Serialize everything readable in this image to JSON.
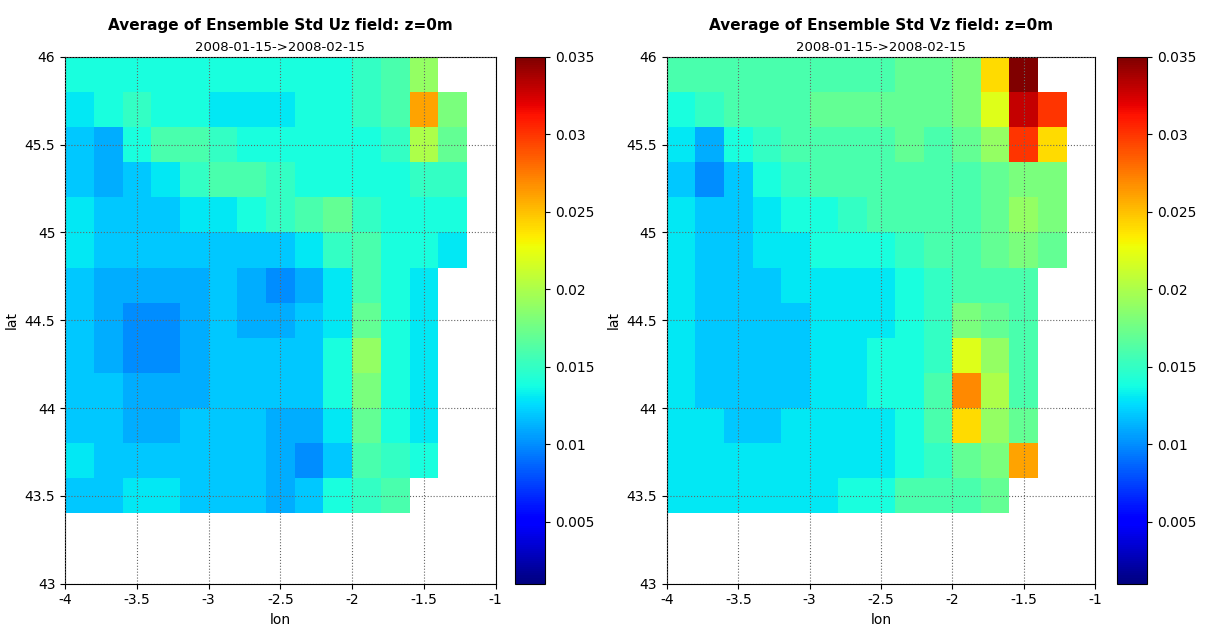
{
  "chart_data": [
    {
      "type": "heatmap",
      "title": "Average of Ensemble Std Uz field: z=0m",
      "subtitle": "2008-01-15->2008-02-15",
      "x_label": "lon",
      "y_label": "lat",
      "xlim": [
        -4,
        -1
      ],
      "ylim": [
        43,
        46
      ],
      "xticks": [
        -4,
        -3.5,
        -3,
        -2.5,
        -2,
        -1.5,
        -1
      ],
      "yticks": [
        43,
        43.5,
        44,
        44.5,
        45,
        45.5,
        46
      ],
      "grid": true,
      "x_edges": [
        -4.0,
        -3.8,
        -3.6,
        -3.4,
        -3.2,
        -3.0,
        -2.8,
        -2.6,
        -2.4,
        -2.2,
        -2.0,
        -1.8,
        -1.6,
        -1.4,
        -1.2
      ],
      "y_edges": [
        43.4,
        43.6,
        43.8,
        44.0,
        44.2,
        44.4,
        44.6,
        44.8,
        45.0,
        45.2,
        45.4,
        45.6,
        45.8,
        46.0
      ],
      "cells": [
        [
          0.012,
          0.012,
          0.013,
          0.013,
          0.012,
          0.012,
          0.012,
          0.011,
          0.012,
          0.014,
          0.015,
          0.016,
          null,
          null
        ],
        [
          0.013,
          0.012,
          0.012,
          0.012,
          0.012,
          0.012,
          0.012,
          0.011,
          0.01,
          0.012,
          0.016,
          0.015,
          0.014,
          null
        ],
        [
          0.012,
          0.012,
          0.011,
          0.011,
          0.012,
          0.012,
          0.012,
          0.011,
          0.011,
          0.013,
          0.017,
          0.014,
          0.013,
          null
        ],
        [
          0.012,
          0.012,
          0.011,
          0.011,
          0.011,
          0.012,
          0.012,
          0.012,
          0.012,
          0.014,
          0.018,
          0.014,
          0.013,
          null
        ],
        [
          0.012,
          0.011,
          0.01,
          0.01,
          0.011,
          0.012,
          0.012,
          0.012,
          0.012,
          0.014,
          0.019,
          0.014,
          0.013,
          null
        ],
        [
          0.012,
          0.011,
          0.01,
          0.01,
          0.011,
          0.012,
          0.011,
          0.011,
          0.012,
          0.013,
          0.017,
          0.014,
          0.013,
          null
        ],
        [
          0.012,
          0.011,
          0.011,
          0.011,
          0.011,
          0.012,
          0.011,
          0.01,
          0.011,
          0.013,
          0.016,
          0.014,
          0.013,
          null
        ],
        [
          0.013,
          0.012,
          0.012,
          0.012,
          0.012,
          0.012,
          0.012,
          0.012,
          0.013,
          0.015,
          0.016,
          0.014,
          0.014,
          0.013
        ],
        [
          0.013,
          0.012,
          0.012,
          0.012,
          0.013,
          0.013,
          0.014,
          0.015,
          0.016,
          0.017,
          0.015,
          0.014,
          0.014,
          0.014
        ],
        [
          0.012,
          0.011,
          0.012,
          0.013,
          0.015,
          0.016,
          0.016,
          0.015,
          0.014,
          0.014,
          0.014,
          0.014,
          0.015,
          0.015
        ],
        [
          0.012,
          0.011,
          0.014,
          0.016,
          0.016,
          0.015,
          0.014,
          0.014,
          0.014,
          0.014,
          0.014,
          0.015,
          0.02,
          0.017
        ],
        [
          0.013,
          0.014,
          0.015,
          0.014,
          0.014,
          0.013,
          0.013,
          0.013,
          0.014,
          0.014,
          0.015,
          0.016,
          0.026,
          0.018
        ],
        [
          0.014,
          0.014,
          0.014,
          0.014,
          0.014,
          0.014,
          0.014,
          0.014,
          0.014,
          0.014,
          0.015,
          0.016,
          0.019,
          null
        ]
      ],
      "colorbar_range": [
        0.001,
        0.035
      ],
      "colorbar_ticks": [
        0.005,
        0.01,
        0.015,
        0.02,
        0.025,
        0.03,
        0.035
      ]
    },
    {
      "type": "heatmap",
      "title": "Average of Ensemble Std Vz field: z=0m",
      "subtitle": "2008-01-15->2008-02-15",
      "x_label": "lon",
      "y_label": "lat",
      "xlim": [
        -4,
        -1
      ],
      "ylim": [
        43,
        46
      ],
      "xticks": [
        -4,
        -3.5,
        -3,
        -2.5,
        -2,
        -1.5,
        -1
      ],
      "yticks": [
        43,
        43.5,
        44,
        44.5,
        45,
        45.5,
        46
      ],
      "grid": true,
      "x_edges": [
        -4.0,
        -3.8,
        -3.6,
        -3.4,
        -3.2,
        -3.0,
        -2.8,
        -2.6,
        -2.4,
        -2.2,
        -2.0,
        -1.8,
        -1.6,
        -1.4,
        -1.2
      ],
      "y_edges": [
        43.4,
        43.6,
        43.8,
        44.0,
        44.2,
        44.4,
        44.6,
        44.8,
        45.0,
        45.2,
        45.4,
        45.6,
        45.8,
        46.0
      ],
      "cells": [
        [
          0.013,
          0.013,
          0.013,
          0.013,
          0.013,
          0.013,
          0.014,
          0.014,
          0.016,
          0.016,
          0.016,
          0.017,
          null,
          null
        ],
        [
          0.013,
          0.013,
          0.013,
          0.013,
          0.013,
          0.013,
          0.013,
          0.013,
          0.014,
          0.015,
          0.017,
          0.018,
          0.026,
          null
        ],
        [
          0.013,
          0.013,
          0.012,
          0.012,
          0.013,
          0.013,
          0.013,
          0.013,
          0.014,
          0.016,
          0.024,
          0.019,
          0.017,
          null
        ],
        [
          0.013,
          0.012,
          0.012,
          0.012,
          0.012,
          0.013,
          0.013,
          0.014,
          0.014,
          0.016,
          0.027,
          0.02,
          0.016,
          null
        ],
        [
          0.013,
          0.012,
          0.012,
          0.012,
          0.012,
          0.013,
          0.013,
          0.014,
          0.014,
          0.015,
          0.022,
          0.019,
          0.016,
          null
        ],
        [
          0.013,
          0.012,
          0.012,
          0.012,
          0.012,
          0.013,
          0.013,
          0.013,
          0.014,
          0.015,
          0.018,
          0.017,
          0.016,
          null
        ],
        [
          0.013,
          0.012,
          0.012,
          0.012,
          0.013,
          0.013,
          0.013,
          0.013,
          0.014,
          0.015,
          0.016,
          0.016,
          0.016,
          null
        ],
        [
          0.013,
          0.012,
          0.012,
          0.013,
          0.013,
          0.014,
          0.014,
          0.014,
          0.015,
          0.016,
          0.016,
          0.017,
          0.018,
          0.017
        ],
        [
          0.013,
          0.012,
          0.012,
          0.013,
          0.014,
          0.014,
          0.015,
          0.016,
          0.016,
          0.016,
          0.016,
          0.017,
          0.019,
          0.018
        ],
        [
          0.012,
          0.01,
          0.012,
          0.014,
          0.015,
          0.016,
          0.016,
          0.016,
          0.016,
          0.016,
          0.016,
          0.017,
          0.018,
          0.018
        ],
        [
          0.013,
          0.011,
          0.014,
          0.015,
          0.016,
          0.016,
          0.016,
          0.016,
          0.017,
          0.016,
          0.017,
          0.019,
          0.03,
          0.024
        ],
        [
          0.014,
          0.015,
          0.016,
          0.016,
          0.016,
          0.017,
          0.017,
          0.017,
          0.017,
          0.017,
          0.018,
          0.022,
          0.033,
          0.03
        ],
        [
          0.016,
          0.016,
          0.016,
          0.016,
          0.016,
          0.016,
          0.016,
          0.016,
          0.017,
          0.017,
          0.018,
          0.024,
          0.035,
          null
        ]
      ],
      "colorbar_range": [
        0.001,
        0.035
      ],
      "colorbar_ticks": [
        0.005,
        0.01,
        0.015,
        0.02,
        0.025,
        0.03,
        0.035
      ]
    }
  ]
}
